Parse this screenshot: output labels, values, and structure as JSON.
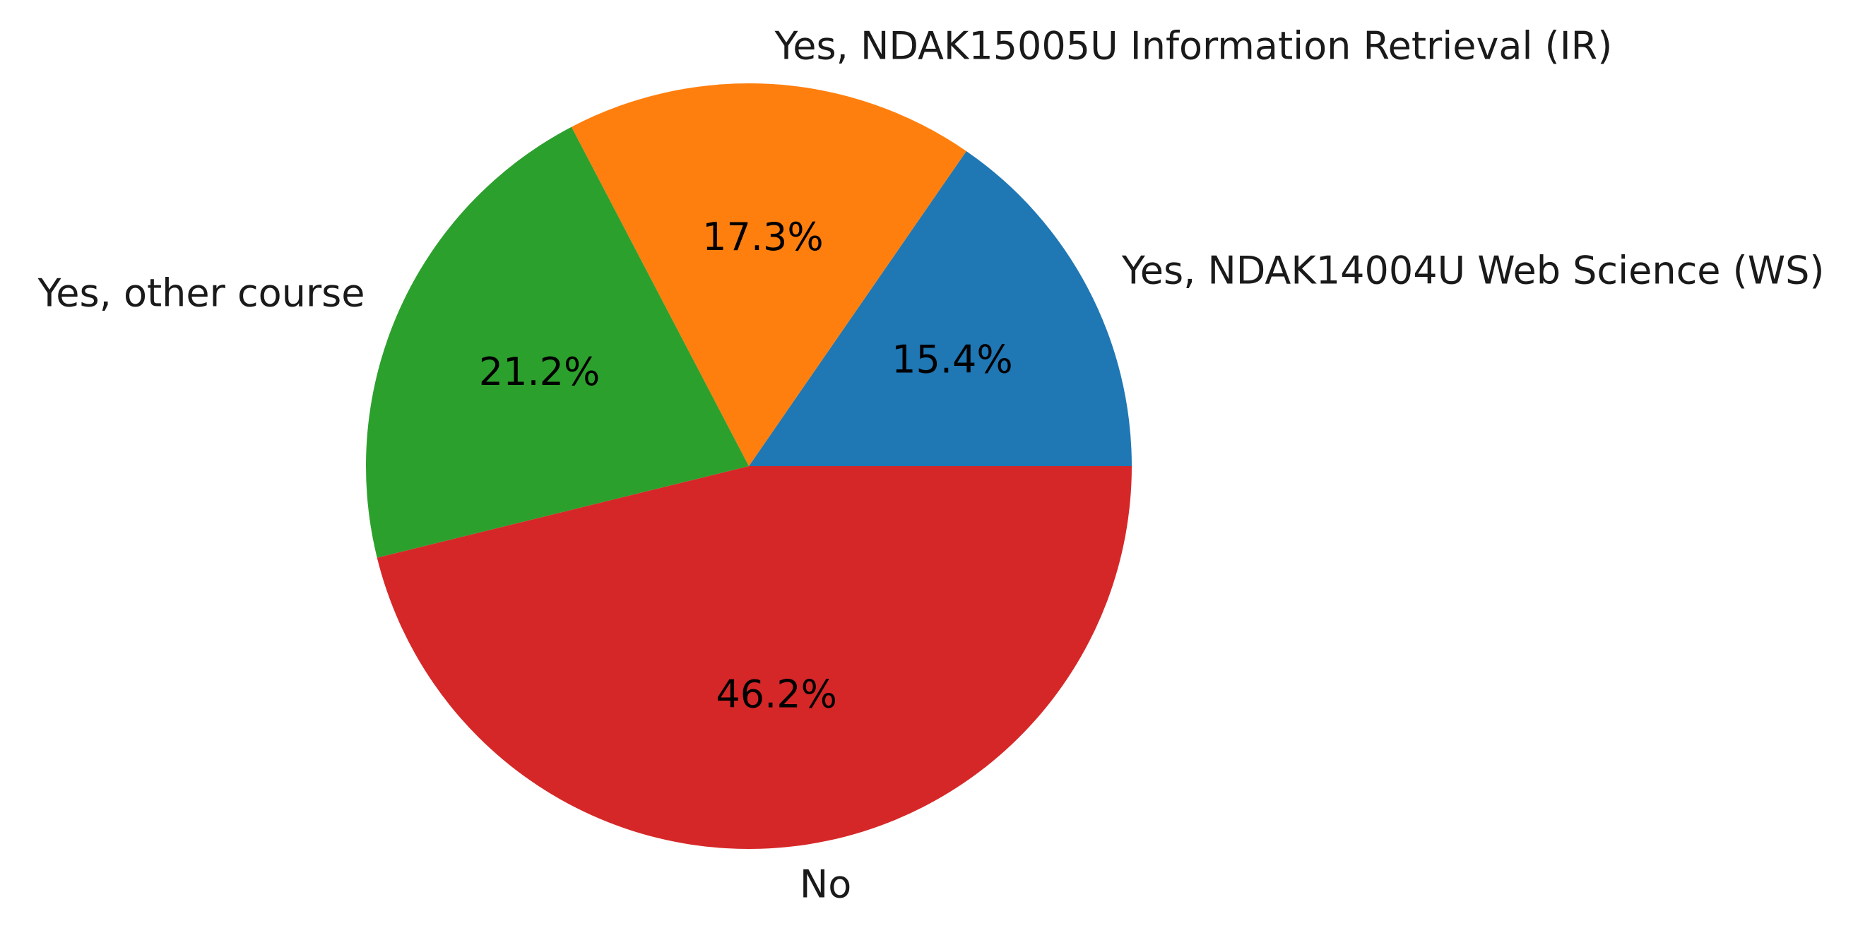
{
  "chart_data": {
    "type": "pie",
    "categories": [
      "Yes, NDAK14004U Web Science (WS)",
      "Yes, NDAK15005U Information Retrieval (IR)",
      "Yes, other course",
      "No"
    ],
    "values": [
      15.4,
      17.3,
      21.2,
      46.2
    ],
    "value_labels": [
      "15.4%",
      "17.3%",
      "21.2%",
      "46.2%"
    ],
    "colors": [
      "#1f77b4",
      "#ff7f0e",
      "#2ca02c",
      "#d62728"
    ],
    "start_angle_deg": 0,
    "direction": "counterclockwise",
    "title": "",
    "legend": "none"
  }
}
